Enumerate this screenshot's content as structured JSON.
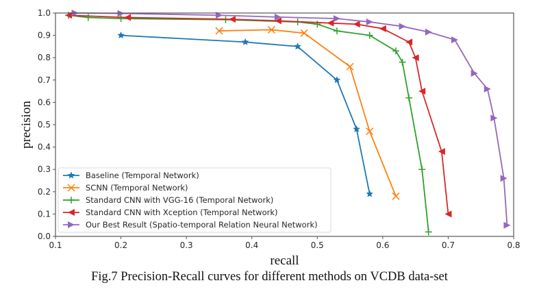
{
  "caption": "Fig.7 Precision-Recall curves for different methods on VCDB data-set",
  "chart_data": {
    "type": "line",
    "title": "",
    "xlabel": "recall",
    "ylabel": "precision",
    "xlim": [
      0.1,
      0.8
    ],
    "ylim": [
      0.0,
      1.0
    ],
    "xticks": [
      "0.1",
      "0.2",
      "0.3",
      "0.4",
      "0.5",
      "0.6",
      "0.7",
      "0.8"
    ],
    "yticks": [
      "0.0",
      "0.1",
      "0.2",
      "0.3",
      "0.4",
      "0.5",
      "0.6",
      "0.7",
      "0.8",
      "0.9",
      "1.0"
    ],
    "grid": false,
    "legend_position": "lower-left",
    "series": [
      {
        "name": "Baseline (Temporal Network)",
        "color": "#1f77b4",
        "marker": "star",
        "x": [
          0.2,
          0.39,
          0.47,
          0.53,
          0.56,
          0.58
        ],
        "y": [
          0.9,
          0.87,
          0.85,
          0.7,
          0.48,
          0.19
        ]
      },
      {
        "name": "SCNN (Temporal Network)",
        "color": "#ff7f0e",
        "marker": "x",
        "x": [
          0.35,
          0.43,
          0.48,
          0.55,
          0.58,
          0.62
        ],
        "y": [
          0.92,
          0.925,
          0.91,
          0.76,
          0.47,
          0.18
        ]
      },
      {
        "name": "Standard CNN with VGG-16 (Temporal Network)",
        "color": "#2ca02c",
        "marker": "plus",
        "x": [
          0.12,
          0.15,
          0.2,
          0.36,
          0.47,
          0.5,
          0.53,
          0.58,
          0.62,
          0.63,
          0.64,
          0.66,
          0.67
        ],
        "y": [
          0.99,
          0.98,
          0.975,
          0.97,
          0.96,
          0.95,
          0.92,
          0.9,
          0.83,
          0.78,
          0.62,
          0.3,
          0.02
        ]
      },
      {
        "name": "Standard CNN with Xception (Temporal Network)",
        "color": "#d62728",
        "marker": "triangle-left",
        "x": [
          0.12,
          0.21,
          0.37,
          0.44,
          0.52,
          0.56,
          0.6,
          0.64,
          0.65,
          0.66,
          0.69,
          0.7
        ],
        "y": [
          0.99,
          0.98,
          0.972,
          0.965,
          0.955,
          0.95,
          0.93,
          0.87,
          0.8,
          0.65,
          0.38,
          0.1
        ]
      },
      {
        "name": "Our Best Result (Spatio-temporal Relation Neural Network)",
        "color": "#9467bd",
        "marker": "triangle-right",
        "x": [
          0.13,
          0.2,
          0.35,
          0.44,
          0.53,
          0.58,
          0.63,
          0.67,
          0.71,
          0.74,
          0.76,
          0.77,
          0.785,
          0.79
        ],
        "y": [
          1.0,
          0.998,
          0.99,
          0.982,
          0.975,
          0.96,
          0.94,
          0.915,
          0.88,
          0.73,
          0.66,
          0.53,
          0.26,
          0.05
        ]
      }
    ]
  }
}
